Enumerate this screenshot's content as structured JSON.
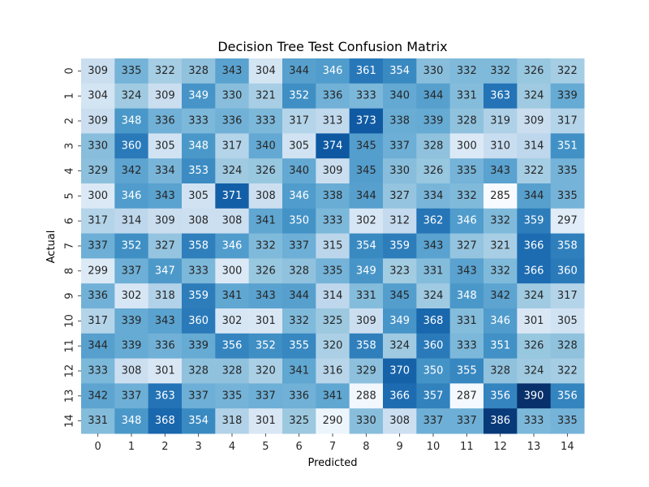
{
  "chart_data": {
    "type": "heatmap",
    "title": "Decision Tree Test Confusion Matrix",
    "xlabel": "Predicted",
    "ylabel": "Actual",
    "x_categories": [
      "0",
      "1",
      "2",
      "3",
      "4",
      "5",
      "6",
      "7",
      "8",
      "9",
      "10",
      "11",
      "12",
      "13",
      "14"
    ],
    "y_categories": [
      "0",
      "1",
      "2",
      "3",
      "4",
      "5",
      "6",
      "7",
      "8",
      "9",
      "10",
      "11",
      "12",
      "13",
      "14"
    ],
    "colormap": "Blues",
    "vmin": 285,
    "vmax": 390,
    "annotated": true,
    "colorbar": false,
    "values": [
      [
        309,
        335,
        322,
        328,
        343,
        304,
        344,
        346,
        361,
        354,
        330,
        332,
        332,
        326,
        322
      ],
      [
        304,
        324,
        309,
        349,
        330,
        321,
        352,
        336,
        333,
        340,
        344,
        331,
        363,
        324,
        339
      ],
      [
        309,
        348,
        336,
        333,
        336,
        333,
        317,
        313,
        373,
        338,
        339,
        328,
        319,
        309,
        317
      ],
      [
        330,
        360,
        305,
        348,
        317,
        340,
        305,
        374,
        345,
        337,
        328,
        300,
        310,
        314,
        351
      ],
      [
        329,
        342,
        334,
        353,
        324,
        326,
        340,
        309,
        345,
        330,
        326,
        335,
        343,
        322,
        335
      ],
      [
        300,
        346,
        343,
        305,
        371,
        308,
        346,
        338,
        344,
        327,
        334,
        332,
        285,
        344,
        335
      ],
      [
        317,
        314,
        309,
        308,
        308,
        341,
        350,
        333,
        302,
        312,
        362,
        346,
        332,
        359,
        297
      ],
      [
        337,
        352,
        327,
        358,
        346,
        332,
        337,
        315,
        354,
        359,
        343,
        327,
        321,
        366,
        358
      ],
      [
        299,
        337,
        347,
        333,
        300,
        326,
        328,
        335,
        349,
        323,
        331,
        343,
        332,
        366,
        360
      ],
      [
        336,
        302,
        318,
        359,
        341,
        343,
        344,
        314,
        331,
        345,
        324,
        348,
        342,
        324,
        317
      ],
      [
        317,
        339,
        343,
        360,
        302,
        301,
        332,
        325,
        309,
        349,
        368,
        331,
        346,
        301,
        305
      ],
      [
        344,
        339,
        336,
        339,
        356,
        352,
        355,
        320,
        358,
        324,
        360,
        333,
        351,
        326,
        328
      ],
      [
        333,
        308,
        301,
        328,
        328,
        320,
        341,
        316,
        329,
        370,
        350,
        355,
        328,
        324,
        322
      ],
      [
        342,
        337,
        363,
        337,
        335,
        337,
        336,
        341,
        288,
        366,
        357,
        287,
        356,
        390,
        356
      ],
      [
        331,
        348,
        368,
        354,
        318,
        301,
        325,
        290,
        330,
        308,
        337,
        337,
        386,
        333,
        335
      ]
    ]
  }
}
